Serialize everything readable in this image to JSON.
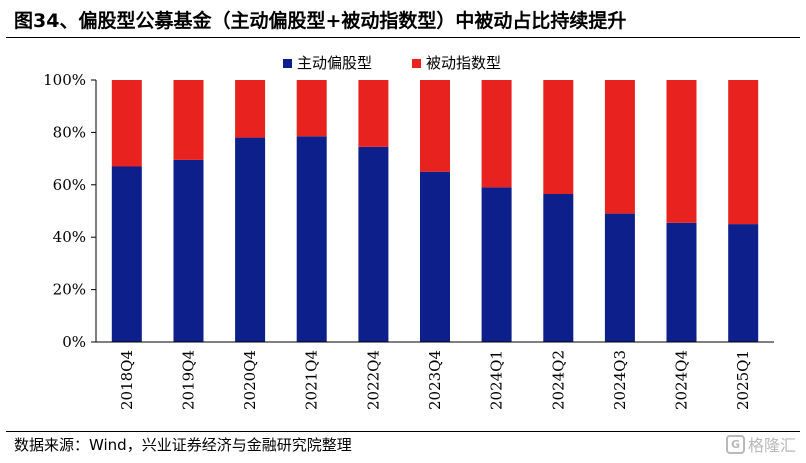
{
  "header": {
    "title": "图34、偏股型公募基金（主动偏股型+被动指数型）中被动占比持续提升"
  },
  "footer": {
    "source": "数据来源：Wind，兴业证券经济与金融研究院整理",
    "watermark": "格隆汇",
    "watermark_icon": "G"
  },
  "chart_data": {
    "type": "bar",
    "stacked": true,
    "percent": true,
    "categories": [
      "2018Q4",
      "2019Q4",
      "2020Q4",
      "2021Q4",
      "2022Q4",
      "2023Q4",
      "2024Q1",
      "2024Q2",
      "2024Q3",
      "2024Q4",
      "2025Q1"
    ],
    "series": [
      {
        "name": "主动偏股型",
        "color": "#0c1f8a",
        "values": [
          67,
          69.5,
          78,
          78.5,
          74.5,
          65,
          59,
          56.5,
          49,
          45.5,
          45
        ]
      },
      {
        "name": "被动指数型",
        "color": "#e8231f",
        "values": [
          33,
          30.5,
          22,
          21.5,
          25.5,
          35,
          41,
          43.5,
          51,
          54.5,
          55
        ]
      }
    ],
    "ylim": [
      0,
      100
    ],
    "yticks": [
      "0%",
      "20%",
      "40%",
      "60%",
      "80%",
      "100%"
    ],
    "grid": false,
    "legend": "top-center"
  }
}
